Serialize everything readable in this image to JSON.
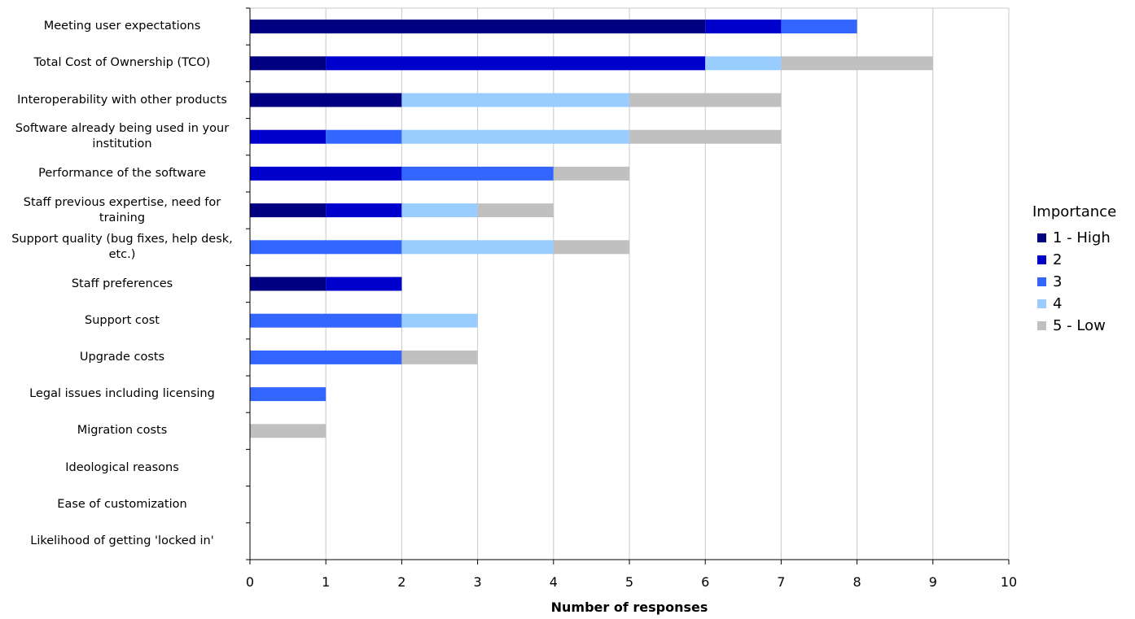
{
  "chart_data": {
    "type": "bar",
    "orientation": "horizontal",
    "stacked": true,
    "categories": [
      "Meeting user expectations",
      "Total Cost of Ownership (TCO)",
      "Interoperability with other products",
      "Software already being used in your institution",
      "Performance of the software",
      "Staff previous expertise, need for training",
      "Support quality (bug fixes, help desk, etc.)",
      "Staff preferences",
      "Support cost",
      "Upgrade costs",
      "Legal issues including licensing",
      "Migration costs",
      "Ideological reasons",
      "Ease of customization",
      "Likelihood of getting 'locked in'"
    ],
    "series": [
      {
        "name": "1 - High",
        "color": "#000080",
        "values": [
          6,
          1,
          2,
          0,
          0,
          1,
          0,
          1,
          0,
          0,
          0,
          0,
          0,
          0,
          0
        ]
      },
      {
        "name": "2",
        "color": "#0000cc",
        "values": [
          1,
          5,
          0,
          1,
          2,
          1,
          0,
          1,
          0,
          0,
          0,
          0,
          0,
          0,
          0
        ]
      },
      {
        "name": "3",
        "color": "#3366ff",
        "values": [
          1,
          0,
          0,
          1,
          2,
          0,
          2,
          0,
          2,
          2,
          1,
          0,
          0,
          0,
          0
        ]
      },
      {
        "name": "4",
        "color": "#99ccff",
        "values": [
          0,
          1,
          3,
          3,
          0,
          1,
          2,
          0,
          1,
          0,
          0,
          0,
          0,
          0,
          0
        ]
      },
      {
        "name": "5 - Low",
        "color": "#c0c0c0",
        "values": [
          0,
          2,
          2,
          2,
          1,
          1,
          1,
          0,
          0,
          1,
          0,
          1,
          0,
          0,
          0
        ]
      }
    ],
    "xlabel": "Number of responses",
    "ylabel": "",
    "xlim": [
      0,
      10
    ],
    "xticks": [
      "0",
      "1",
      "2",
      "3",
      "4",
      "5",
      "6",
      "7",
      "8",
      "9",
      "10"
    ],
    "grid": "vertical",
    "legend_title": "Importance",
    "legend_position": "right"
  }
}
